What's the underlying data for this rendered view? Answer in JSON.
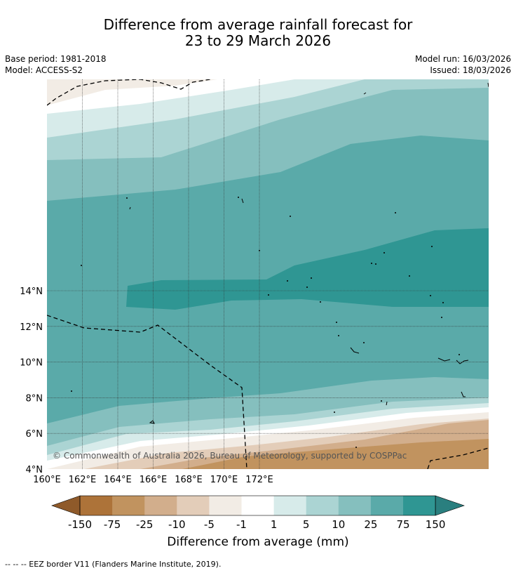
{
  "title": {
    "line1": "Difference from average rainfall forecast for",
    "line2": "23 to 29 March 2026"
  },
  "meta": {
    "base_period": "Base period: 1981-2018",
    "model": "Model: ACCESS-S2",
    "model_run": "Model run: 16/03/2026",
    "issued": "Issued: 18/03/2026"
  },
  "map": {
    "lat_labels": [
      "4°N",
      "6°N",
      "8°N",
      "10°N",
      "12°N",
      "14°N"
    ],
    "lon_labels": [
      "160°E",
      "162°E",
      "164°E",
      "166°E",
      "168°E",
      "170°E",
      "172°E"
    ],
    "copyright": "© Commonwealth of Australia 2026, Bureau of Meteorology, supported by COSPPac"
  },
  "colorbar": {
    "ticks": [
      "-150",
      "-75",
      "-25",
      "-10",
      "-5",
      "-1",
      "1",
      "5",
      "10",
      "25",
      "75",
      "150"
    ],
    "colors": [
      "#ad7339",
      "#c1935f",
      "#d2ae8c",
      "#e3cdb9",
      "#f2ece5",
      "#ffffff",
      "#d7ebea",
      "#abd4d3",
      "#85bfbe",
      "#5aaaa9",
      "#2f9693"
    ],
    "low_arrow_color": "#8f5a2a",
    "high_arrow_color": "#2a7f7f",
    "label": "Difference from average (mm)"
  },
  "footer": {
    "legend": "--  --  -- EEZ border V11 (Flanders Marine Institute, 2019)."
  }
}
